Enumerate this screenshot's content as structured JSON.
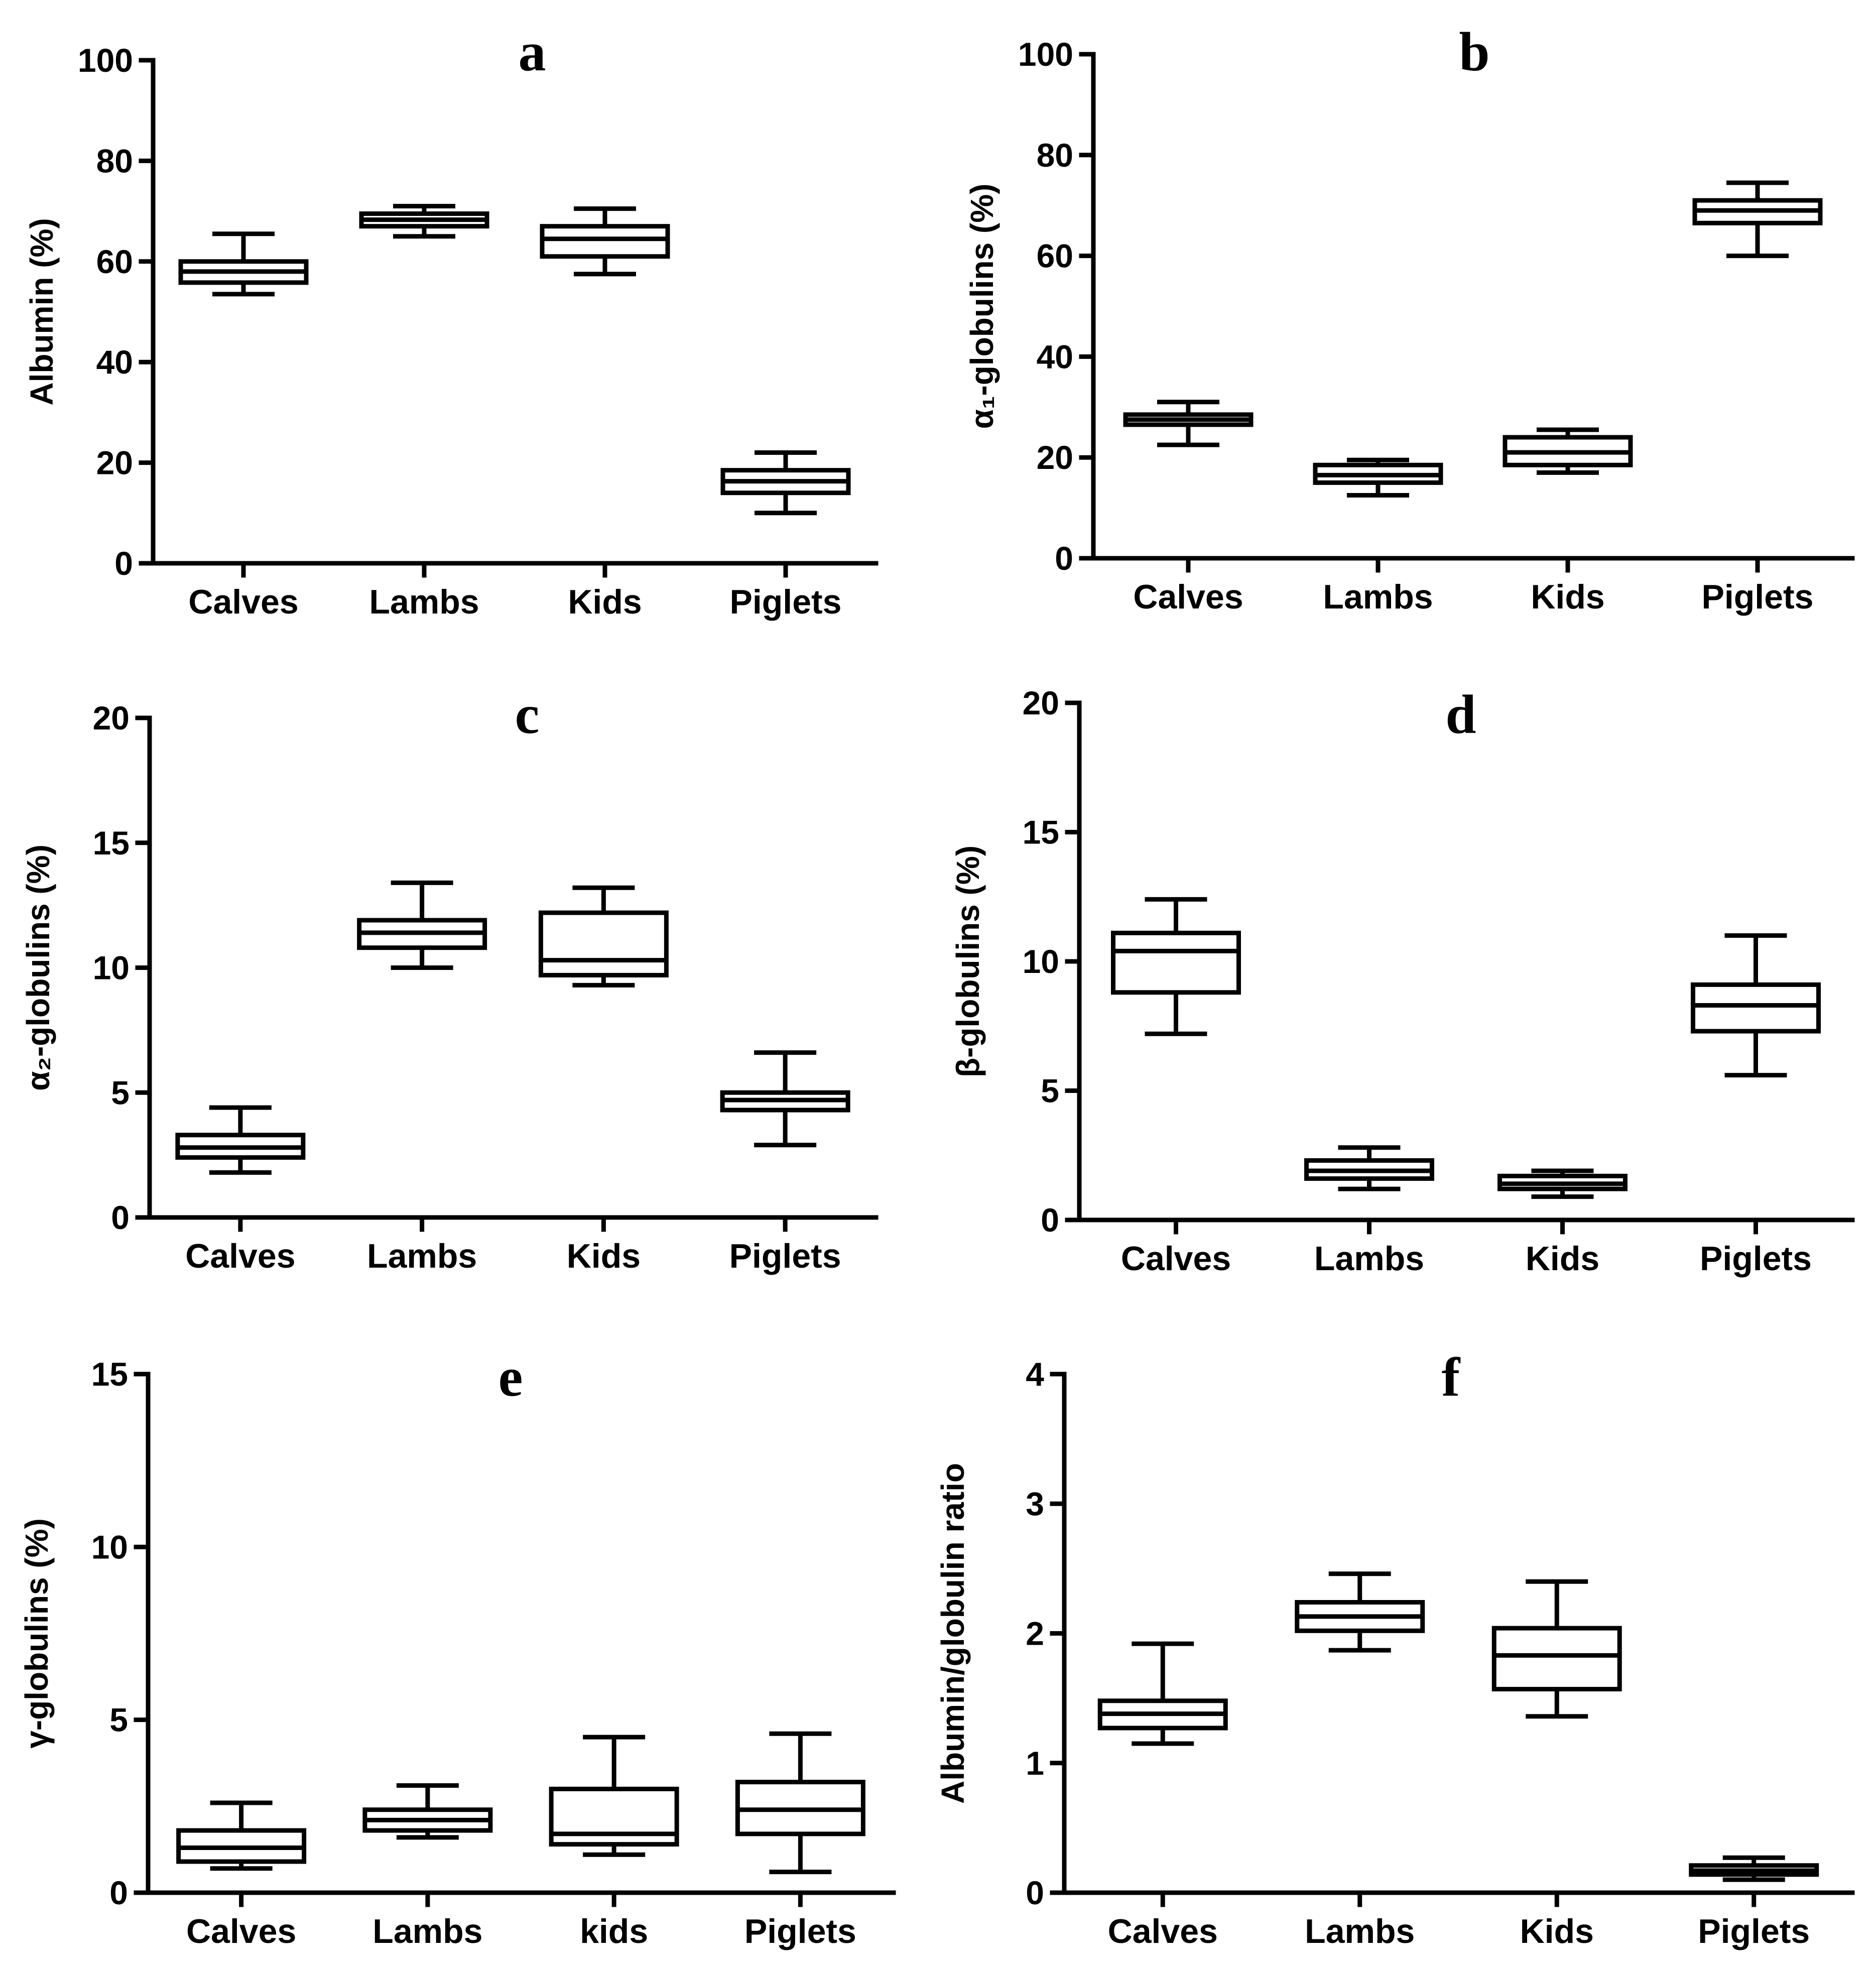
{
  "chart_data": [
    {
      "type": "box",
      "panel_letter": "a",
      "ylabel": "Albumin (%)",
      "ylim": [
        0,
        100
      ],
      "yticks": [
        0,
        20,
        40,
        60,
        80,
        100
      ],
      "categories": [
        "Calves",
        "Lambs",
        "Kids",
        "Piglets"
      ],
      "boxes": [
        {
          "min": 53.5,
          "q1": 55.8,
          "median": 58.0,
          "q3": 60.0,
          "max": 65.5
        },
        {
          "min": 65.0,
          "q1": 67.0,
          "median": 68.3,
          "q3": 69.5,
          "max": 71.0
        },
        {
          "min": 57.5,
          "q1": 61.0,
          "median": 64.5,
          "q3": 67.0,
          "max": 70.5
        },
        {
          "min": 10.0,
          "q1": 14.0,
          "median": 16.3,
          "q3": 18.5,
          "max": 22.0
        }
      ]
    },
    {
      "type": "box",
      "panel_letter": "b",
      "ylabel": "α₁-globulins (%)",
      "ylim": [
        0,
        100
      ],
      "yticks": [
        0,
        20,
        40,
        60,
        80,
        100
      ],
      "categories": [
        "Calves",
        "Lambs",
        "Kids",
        "Piglets"
      ],
      "boxes": [
        {
          "min": 22.5,
          "q1": 26.5,
          "median": 27.5,
          "q3": 28.5,
          "max": 31.0
        },
        {
          "min": 12.5,
          "q1": 15.0,
          "median": 16.5,
          "q3": 18.5,
          "max": 19.5
        },
        {
          "min": 17.0,
          "q1": 18.5,
          "median": 21.0,
          "q3": 24.0,
          "max": 25.5
        },
        {
          "min": 60.0,
          "q1": 66.5,
          "median": 69.0,
          "q3": 71.0,
          "max": 74.5
        }
      ]
    },
    {
      "type": "box",
      "panel_letter": "c",
      "ylabel": "α₂-globulins (%)",
      "ylim": [
        0,
        20
      ],
      "yticks": [
        0,
        5,
        10,
        15,
        20
      ],
      "categories": [
        "Calves",
        "Lambs",
        "Kids",
        "Piglets"
      ],
      "boxes": [
        {
          "min": 1.8,
          "q1": 2.4,
          "median": 2.8,
          "q3": 3.3,
          "max": 4.4
        },
        {
          "min": 10.0,
          "q1": 10.8,
          "median": 11.4,
          "q3": 11.9,
          "max": 13.4
        },
        {
          "min": 9.3,
          "q1": 9.7,
          "median": 10.3,
          "q3": 12.2,
          "max": 13.2
        },
        {
          "min": 2.9,
          "q1": 4.3,
          "median": 4.7,
          "q3": 5.0,
          "max": 6.6
        }
      ]
    },
    {
      "type": "box",
      "panel_letter": "d",
      "ylabel": "β-globulins (%)",
      "ylim": [
        0,
        20
      ],
      "yticks": [
        0,
        5,
        10,
        15,
        20
      ],
      "categories": [
        "Calves",
        "Lambs",
        "Kids",
        "Piglets"
      ],
      "boxes": [
        {
          "min": 7.2,
          "q1": 8.8,
          "median": 10.4,
          "q3": 11.1,
          "max": 12.4
        },
        {
          "min": 1.2,
          "q1": 1.6,
          "median": 1.9,
          "q3": 2.3,
          "max": 2.8
        },
        {
          "min": 0.9,
          "q1": 1.2,
          "median": 1.4,
          "q3": 1.7,
          "max": 1.9
        },
        {
          "min": 5.6,
          "q1": 7.3,
          "median": 8.3,
          "q3": 9.1,
          "max": 11.0
        }
      ]
    },
    {
      "type": "box",
      "panel_letter": "e",
      "ylabel": "γ-globulins (%)",
      "ylim": [
        0,
        15
      ],
      "yticks": [
        0,
        5,
        10,
        15
      ],
      "categories": [
        "Calves",
        "Lambs",
        "kids",
        "Piglets"
      ],
      "boxes": [
        {
          "min": 0.7,
          "q1": 0.9,
          "median": 1.3,
          "q3": 1.8,
          "max": 2.6
        },
        {
          "min": 1.6,
          "q1": 1.8,
          "median": 2.1,
          "q3": 2.4,
          "max": 3.1
        },
        {
          "min": 1.1,
          "q1": 1.4,
          "median": 1.7,
          "q3": 3.0,
          "max": 4.5
        },
        {
          "min": 0.6,
          "q1": 1.7,
          "median": 2.4,
          "q3": 3.2,
          "max": 4.6
        }
      ]
    },
    {
      "type": "box",
      "panel_letter": "f",
      "ylabel": "Albumin/globulin ratio",
      "ylim": [
        0,
        4
      ],
      "yticks": [
        0,
        1,
        2,
        3,
        4
      ],
      "categories": [
        "Calves",
        "Lambs",
        "Kids",
        "Piglets"
      ],
      "boxes": [
        {
          "min": 1.15,
          "q1": 1.27,
          "median": 1.38,
          "q3": 1.48,
          "max": 1.92
        },
        {
          "min": 1.87,
          "q1": 2.02,
          "median": 2.13,
          "q3": 2.24,
          "max": 2.46
        },
        {
          "min": 1.36,
          "q1": 1.57,
          "median": 1.83,
          "q3": 2.04,
          "max": 2.4
        },
        {
          "min": 0.1,
          "q1": 0.14,
          "median": 0.17,
          "q3": 0.21,
          "max": 0.27
        }
      ]
    }
  ]
}
